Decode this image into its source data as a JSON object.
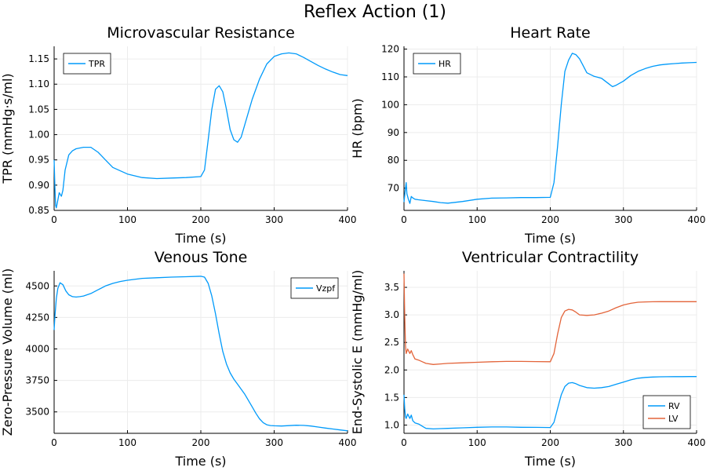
{
  "title": "Reflex Action (1)",
  "colors": {
    "blue": "#009AFA",
    "orange": "#E3643A",
    "grid": "#ececec",
    "axis": "#000000"
  },
  "chart_data": [
    {
      "type": "line",
      "title": "Microvascular Resistance",
      "xlabel": "Time (s)",
      "ylabel": "TPR (mmHg·s/ml)",
      "xlim": [
        0,
        400
      ],
      "ylim": [
        0.85,
        1.175
      ],
      "xticks": [
        0,
        100,
        200,
        300,
        400
      ],
      "xtick_labels": [
        "0",
        "100",
        "200",
        "300",
        "400"
      ],
      "yticks": [
        0.85,
        0.9,
        0.95,
        1.0,
        1.05,
        1.1,
        1.15
      ],
      "ytick_labels": [
        "0.85",
        "0.90",
        "0.95",
        "1.00",
        "1.05",
        "1.10",
        "1.15"
      ],
      "grid": true,
      "legend": "top-left",
      "series": [
        {
          "name": "TPR",
          "color": "#009AFA",
          "x": [
            0,
            1,
            2,
            3,
            5,
            7,
            9,
            10,
            12,
            15,
            20,
            25,
            30,
            40,
            50,
            60,
            70,
            80,
            100,
            120,
            140,
            160,
            180,
            200,
            205,
            210,
            215,
            220,
            225,
            230,
            235,
            240,
            245,
            250,
            255,
            260,
            270,
            280,
            290,
            300,
            310,
            320,
            330,
            340,
            350,
            360,
            370,
            380,
            390,
            400
          ],
          "y": [
            0.95,
            0.9,
            0.86,
            0.855,
            0.87,
            0.885,
            0.88,
            0.878,
            0.89,
            0.93,
            0.96,
            0.968,
            0.972,
            0.975,
            0.975,
            0.965,
            0.95,
            0.935,
            0.922,
            0.915,
            0.913,
            0.914,
            0.915,
            0.917,
            0.93,
            0.99,
            1.05,
            1.09,
            1.097,
            1.085,
            1.05,
            1.01,
            0.99,
            0.985,
            0.995,
            1.02,
            1.07,
            1.11,
            1.14,
            1.155,
            1.16,
            1.162,
            1.16,
            1.153,
            1.145,
            1.137,
            1.13,
            1.124,
            1.119,
            1.117
          ]
        }
      ]
    },
    {
      "type": "line",
      "title": "Heart Rate",
      "xlabel": "Time (s)",
      "ylabel": "HR (bpm)",
      "xlim": [
        0,
        400
      ],
      "ylim": [
        62,
        121
      ],
      "xticks": [
        0,
        100,
        200,
        300,
        400
      ],
      "xtick_labels": [
        "0",
        "100",
        "200",
        "300",
        "400"
      ],
      "yticks": [
        70,
        80,
        90,
        100,
        110,
        120
      ],
      "ytick_labels": [
        "70",
        "80",
        "90",
        "100",
        "110",
        "120"
      ],
      "grid": true,
      "legend": "top-left",
      "series": [
        {
          "name": "HR",
          "color": "#009AFA",
          "x": [
            0,
            2,
            3,
            4,
            6,
            8,
            10,
            12,
            15,
            20,
            30,
            40,
            50,
            60,
            80,
            100,
            120,
            140,
            160,
            180,
            200,
            205,
            210,
            215,
            220,
            225,
            230,
            235,
            240,
            245,
            250,
            260,
            270,
            280,
            285,
            290,
            300,
            310,
            320,
            330,
            340,
            350,
            360,
            370,
            380,
            390,
            400
          ],
          "y": [
            65,
            70,
            72,
            68,
            66,
            64.5,
            67,
            66.5,
            66,
            65.8,
            65.5,
            65.2,
            64.8,
            64.6,
            65.2,
            66,
            66.4,
            66.5,
            66.6,
            66.6,
            66.7,
            72,
            85,
            100,
            112,
            116,
            118.5,
            118,
            116.5,
            114,
            111.5,
            110.2,
            109.5,
            107.5,
            106.5,
            107,
            108.5,
            110.5,
            112,
            113,
            113.8,
            114.3,
            114.6,
            114.8,
            115,
            115.1,
            115.2
          ]
        }
      ]
    },
    {
      "type": "line",
      "title": "Venous Tone",
      "xlabel": "Time (s)",
      "ylabel": "Zero-Pressure Volume (ml)",
      "xlim": [
        0,
        400
      ],
      "ylim": [
        3330,
        4620
      ],
      "xticks": [
        0,
        100,
        200,
        300,
        400
      ],
      "xtick_labels": [
        "0",
        "100",
        "200",
        "300",
        "400"
      ],
      "yticks": [
        3500,
        3750,
        4000,
        4250,
        4500
      ],
      "ytick_labels": [
        "3500",
        "3750",
        "4000",
        "4250",
        "4500"
      ],
      "grid": true,
      "legend": "top-right",
      "series": [
        {
          "name": "Vzpf",
          "color": "#009AFA",
          "x": [
            0,
            1,
            3,
            5,
            8,
            12,
            16,
            20,
            25,
            30,
            35,
            40,
            50,
            60,
            70,
            80,
            90,
            100,
            120,
            140,
            160,
            180,
            200,
            205,
            210,
            215,
            220,
            225,
            230,
            235,
            240,
            245,
            250,
            255,
            260,
            265,
            270,
            275,
            280,
            285,
            290,
            295,
            300,
            310,
            320,
            330,
            340,
            350,
            360,
            370,
            380,
            390,
            400
          ],
          "y": [
            4150,
            4250,
            4400,
            4480,
            4525,
            4510,
            4460,
            4430,
            4415,
            4412,
            4415,
            4420,
            4440,
            4470,
            4500,
            4520,
            4535,
            4545,
            4560,
            4565,
            4570,
            4573,
            4577,
            4570,
            4520,
            4420,
            4280,
            4120,
            3980,
            3880,
            3810,
            3760,
            3720,
            3680,
            3640,
            3590,
            3540,
            3490,
            3445,
            3415,
            3398,
            3392,
            3390,
            3388,
            3391,
            3394,
            3393,
            3388,
            3380,
            3372,
            3364,
            3357,
            3350
          ]
        }
      ]
    },
    {
      "type": "line",
      "title": "Ventricular Contractility",
      "xlabel": "Time (s)",
      "ylabel": "End-Systolic E (mmHg/ml)",
      "xlim": [
        0,
        400
      ],
      "ylim": [
        0.85,
        3.8
      ],
      "xticks": [
        0,
        100,
        200,
        300,
        400
      ],
      "xtick_labels": [
        "0",
        "100",
        "200",
        "300",
        "400"
      ],
      "yticks": [
        1.0,
        1.5,
        2.0,
        2.5,
        3.0,
        3.5
      ],
      "ytick_labels": [
        "1.0",
        "1.5",
        "2.0",
        "2.5",
        "3.0",
        "3.5"
      ],
      "grid": true,
      "legend": "bottom-right",
      "series": [
        {
          "name": "RV",
          "color": "#009AFA",
          "x": [
            0,
            1,
            2,
            3,
            5,
            8,
            10,
            12,
            15,
            20,
            25,
            30,
            40,
            50,
            60,
            80,
            100,
            120,
            140,
            160,
            180,
            200,
            205,
            210,
            215,
            220,
            225,
            230,
            235,
            240,
            250,
            260,
            270,
            280,
            290,
            300,
            310,
            320,
            330,
            340,
            350,
            360,
            370,
            380,
            390,
            400
          ],
          "y": [
            1.55,
            1.3,
            1.15,
            1.12,
            1.2,
            1.12,
            1.18,
            1.08,
            1.04,
            1.02,
            0.98,
            0.94,
            0.93,
            0.935,
            0.94,
            0.95,
            0.96,
            0.965,
            0.965,
            0.96,
            0.958,
            0.955,
            1.05,
            1.3,
            1.55,
            1.7,
            1.76,
            1.77,
            1.75,
            1.72,
            1.68,
            1.67,
            1.68,
            1.7,
            1.74,
            1.78,
            1.82,
            1.85,
            1.865,
            1.872,
            1.876,
            1.878,
            1.879,
            1.879,
            1.88,
            1.88
          ]
        },
        {
          "name": "LV",
          "color": "#E3643A",
          "x": [
            0,
            1,
            2,
            3,
            5,
            8,
            10,
            12,
            15,
            20,
            25,
            30,
            40,
            50,
            60,
            80,
            100,
            120,
            140,
            160,
            180,
            200,
            205,
            210,
            215,
            220,
            225,
            230,
            235,
            240,
            250,
            260,
            270,
            280,
            290,
            300,
            310,
            320,
            330,
            340,
            350,
            360,
            370,
            380,
            390,
            400
          ],
          "y": [
            3.75,
            3.0,
            2.45,
            2.3,
            2.38,
            2.3,
            2.35,
            2.28,
            2.2,
            2.18,
            2.15,
            2.12,
            2.1,
            2.11,
            2.12,
            2.13,
            2.14,
            2.15,
            2.155,
            2.155,
            2.152,
            2.15,
            2.3,
            2.65,
            2.95,
            3.07,
            3.1,
            3.09,
            3.05,
            3.0,
            2.99,
            3.0,
            3.03,
            3.07,
            3.13,
            3.18,
            3.21,
            3.23,
            3.235,
            3.238,
            3.24,
            3.24,
            3.24,
            3.24,
            3.24,
            3.24
          ]
        }
      ]
    }
  ]
}
